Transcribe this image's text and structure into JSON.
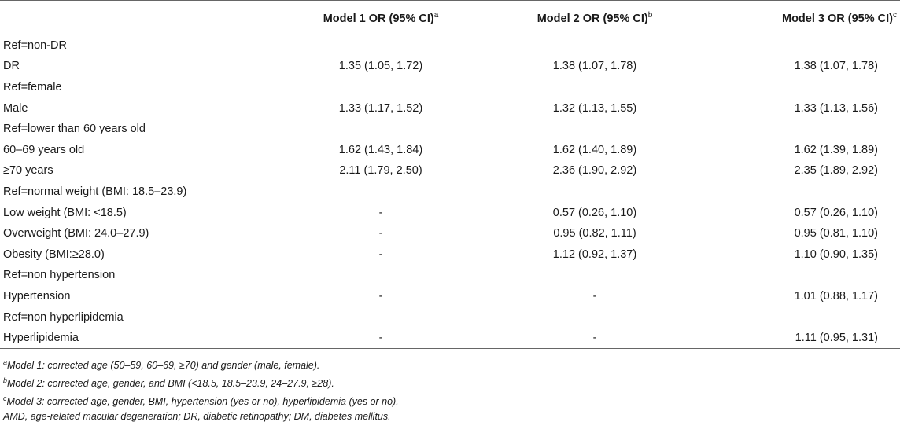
{
  "header": {
    "col0": "",
    "model1": "Model 1 OR (95% CI)",
    "model1_sup": "a",
    "model2": "Model 2 OR (95% CI)",
    "model2_sup": "b",
    "model3": "Model 3 OR (95% CI)",
    "model3_sup": "c"
  },
  "rows": [
    {
      "label": "Ref=non-DR",
      "m1": "",
      "m2": "",
      "m3": ""
    },
    {
      "label": "DR",
      "m1": "1.35 (1.05, 1.72)",
      "m2": "1.38 (1.07, 1.78)",
      "m3": "1.38 (1.07, 1.78)"
    },
    {
      "label": "Ref=female",
      "m1": "",
      "m2": "",
      "m3": ""
    },
    {
      "label": "Male",
      "m1": "1.33 (1.17, 1.52)",
      "m2": "1.32 (1.13, 1.55)",
      "m3": "1.33 (1.13, 1.56)"
    },
    {
      "label": "Ref=lower than 60 years old",
      "m1": "",
      "m2": "",
      "m3": ""
    },
    {
      "label": "60–69 years old",
      "m1": "1.62 (1.43, 1.84)",
      "m2": "1.62 (1.40, 1.89)",
      "m3": "1.62 (1.39, 1.89)"
    },
    {
      "label": "≥70 years",
      "m1": "2.11 (1.79, 2.50)",
      "m2": "2.36 (1.90, 2.92)",
      "m3": "2.35 (1.89, 2.92)"
    },
    {
      "label": "Ref=normal weight (BMI: 18.5–23.9)",
      "m1": "",
      "m2": "",
      "m3": ""
    },
    {
      "label": "Low weight (BMI: <18.5)",
      "m1": "-",
      "m2": "0.57 (0.26, 1.10)",
      "m3": "0.57 (0.26, 1.10)"
    },
    {
      "label": "Overweight (BMI: 24.0–27.9)",
      "m1": "-",
      "m2": "0.95 (0.82, 1.11)",
      "m3": "0.95 (0.81, 1.10)"
    },
    {
      "label": "Obesity (BMI:≥28.0)",
      "m1": "-",
      "m2": "1.12 (0.92, 1.37)",
      "m3": "1.10 (0.90, 1.35)"
    },
    {
      "label": "Ref=non hypertension",
      "m1": "",
      "m2": "",
      "m3": ""
    },
    {
      "label": "Hypertension",
      "m1": "-",
      "m2": "-",
      "m3": "1.01 (0.88, 1.17)"
    },
    {
      "label": "Ref=non hyperlipidemia",
      "m1": "",
      "m2": "",
      "m3": ""
    },
    {
      "label": "Hyperlipidemia",
      "m1": "-",
      "m2": "-",
      "m3": "1.11 (0.95, 1.31)"
    }
  ],
  "footnotes": [
    {
      "sup": "a",
      "text": "Model 1: corrected age (50–59, 60–69, ≥70) and gender (male, female)."
    },
    {
      "sup": "b",
      "text": "Model 2: corrected age, gender, and BMI (<18.5, 18.5–23.9, 24–27.9, ≥28)."
    },
    {
      "sup": "c",
      "text": "Model 3: corrected age, gender, BMI, hypertension (yes or no), hyperlipidemia (yes or no)."
    },
    {
      "sup": "",
      "text": "AMD, age-related macular degeneration; DR, diabetic retinopathy; DM, diabetes mellitus."
    }
  ]
}
